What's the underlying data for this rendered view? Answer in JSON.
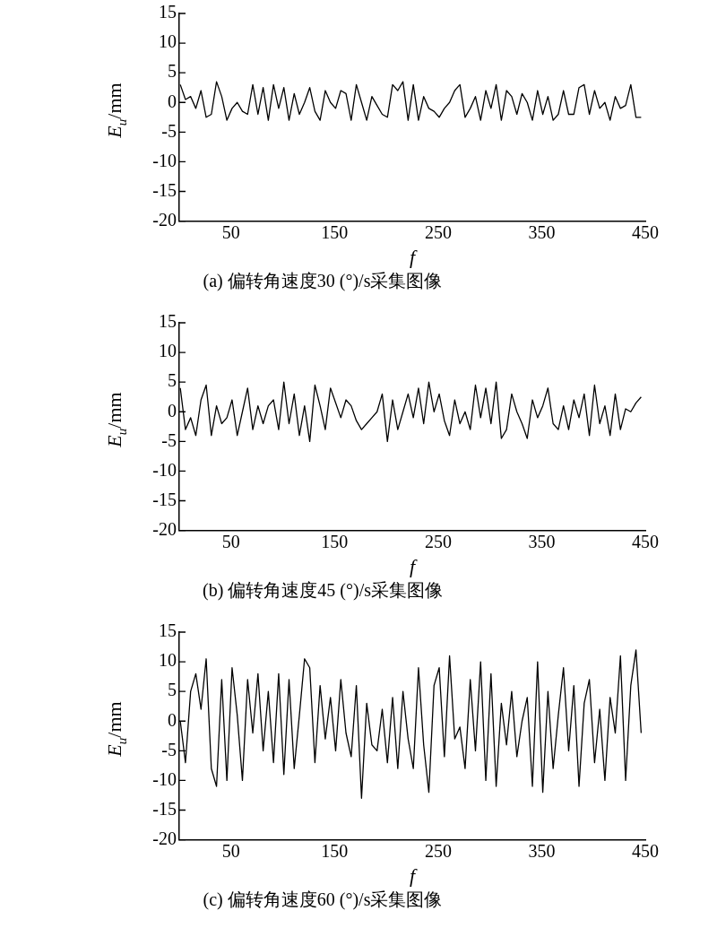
{
  "chart_data": [
    {
      "type": "line",
      "title": "(a) 偏转角速度30 (°)/s采集图像",
      "xlabel": "f",
      "ylabel": "E$_{u}$/mm",
      "color": "#000000",
      "x": [
        1,
        6,
        11,
        16,
        21,
        26,
        31,
        36,
        41,
        46,
        51,
        56,
        61,
        66,
        71,
        76,
        81,
        86,
        91,
        96,
        101,
        106,
        111,
        116,
        121,
        126,
        131,
        136,
        141,
        146,
        151,
        156,
        161,
        166,
        171,
        176,
        181,
        186,
        191,
        196,
        201,
        206,
        211,
        216,
        221,
        226,
        231,
        236,
        241,
        246,
        251,
        256,
        261,
        266,
        271,
        276,
        281,
        286,
        291,
        296,
        301,
        306,
        311,
        316,
        321,
        326,
        331,
        336,
        341,
        346,
        351,
        356,
        361,
        366,
        371,
        376,
        381,
        386,
        391,
        396,
        401,
        406,
        411,
        416,
        421,
        426,
        431,
        436,
        441,
        446
      ],
      "values": [
        3,
        0.5,
        1,
        -1,
        2,
        -2.5,
        -2,
        3.5,
        1,
        -3,
        -1,
        0,
        -1.5,
        -2,
        3,
        -2,
        2.5,
        -3,
        3,
        -1,
        2.5,
        -3,
        1.5,
        -2,
        0,
        2.5,
        -1.5,
        -3,
        2,
        0,
        -1,
        2,
        1.5,
        -3,
        3,
        0,
        -3,
        1,
        -0.5,
        -2,
        -2.5,
        3,
        2,
        3.5,
        -3,
        3,
        -3,
        1,
        -1,
        -1.5,
        -2.5,
        -1,
        0,
        2,
        3,
        -2.5,
        -1,
        1,
        -3,
        2,
        -1,
        3,
        -3,
        2,
        1,
        -2,
        1.5,
        0,
        -3,
        2,
        -2,
        1,
        -3,
        -2,
        2,
        -2,
        -2,
        2.5,
        3,
        -2,
        2,
        -1,
        0,
        -3,
        1,
        -1,
        -0.5,
        3,
        -2.5,
        -2.5
      ],
      "xlim": [
        0,
        450
      ],
      "xticks": [
        50,
        150,
        250,
        350,
        450
      ],
      "ylim": [
        -20,
        15
      ],
      "yticks": [
        -20,
        -15,
        -10,
        -5,
        0,
        5,
        10,
        15
      ]
    },
    {
      "type": "line",
      "title": "(b) 偏转角速度45 (°)/s采集图像",
      "xlabel": "f",
      "ylabel": "E$_{u}$/mm",
      "color": "#000000",
      "x": [
        1,
        6,
        11,
        16,
        21,
        26,
        31,
        36,
        41,
        46,
        51,
        56,
        61,
        66,
        71,
        76,
        81,
        86,
        91,
        96,
        101,
        106,
        111,
        116,
        121,
        126,
        131,
        136,
        141,
        146,
        151,
        156,
        161,
        166,
        171,
        176,
        181,
        186,
        191,
        196,
        201,
        206,
        211,
        216,
        221,
        226,
        231,
        236,
        241,
        246,
        251,
        256,
        261,
        266,
        271,
        276,
        281,
        286,
        291,
        296,
        301,
        306,
        311,
        316,
        321,
        326,
        331,
        336,
        341,
        346,
        351,
        356,
        361,
        366,
        371,
        376,
        381,
        386,
        391,
        396,
        401,
        406,
        411,
        416,
        421,
        426,
        431,
        436,
        441,
        446
      ],
      "values": [
        4,
        -3,
        -1,
        -4,
        2,
        4.5,
        -4,
        1,
        -2,
        -1,
        2,
        -4,
        0,
        4,
        -3,
        1,
        -2,
        1,
        2,
        -3,
        5,
        -2,
        3,
        -4,
        1,
        -5,
        4.5,
        1,
        -3,
        4,
        1.5,
        -1,
        2,
        1,
        -1.5,
        -3,
        -2,
        -1,
        0,
        3,
        -5,
        2,
        -3,
        0,
        3,
        -1,
        4,
        -2,
        5,
        0,
        3,
        -1.5,
        -4,
        2,
        -2,
        0,
        -3,
        4.5,
        -1,
        4,
        -2,
        5,
        -4.5,
        -3,
        3,
        0,
        -2,
        -4.5,
        2,
        -1,
        1,
        4,
        -2,
        -3,
        1,
        -3,
        2,
        -1,
        3,
        -4,
        4.5,
        -2,
        1,
        -4,
        3,
        -3,
        0.5,
        0,
        1.5,
        2.5
      ],
      "xlim": [
        0,
        450
      ],
      "xticks": [
        50,
        150,
        250,
        350,
        450
      ],
      "ylim": [
        -20,
        15
      ],
      "yticks": [
        -20,
        -15,
        -10,
        -5,
        0,
        5,
        10,
        15
      ]
    },
    {
      "type": "line",
      "title": "(c) 偏转角速度60 (°)/s采集图像",
      "xlabel": "f",
      "ylabel": "E$_{u}$/mm",
      "color": "#000000",
      "x": [
        1,
        6,
        11,
        16,
        21,
        26,
        31,
        36,
        41,
        46,
        51,
        56,
        61,
        66,
        71,
        76,
        81,
        86,
        91,
        96,
        101,
        106,
        111,
        116,
        121,
        126,
        131,
        136,
        141,
        146,
        151,
        156,
        161,
        166,
        171,
        176,
        181,
        186,
        191,
        196,
        201,
        206,
        211,
        216,
        221,
        226,
        231,
        236,
        241,
        246,
        251,
        256,
        261,
        266,
        271,
        276,
        281,
        286,
        291,
        296,
        301,
        306,
        311,
        316,
        321,
        326,
        331,
        336,
        341,
        346,
        351,
        356,
        361,
        366,
        371,
        376,
        381,
        386,
        391,
        396,
        401,
        406,
        411,
        416,
        421,
        426,
        431,
        436,
        441,
        446
      ],
      "values": [
        0,
        -7,
        5,
        8,
        2,
        10.5,
        -8,
        -11,
        7,
        -10,
        9,
        1,
        -10,
        7,
        -2,
        8,
        -5,
        5,
        -7,
        8,
        -9,
        7,
        -8,
        1,
        10.5,
        9,
        -7,
        6,
        -3,
        4,
        -5,
        7,
        -2,
        -6,
        6,
        -13,
        3,
        -4,
        -5,
        2,
        -7,
        4,
        -8,
        5,
        -3,
        -8,
        9,
        -4,
        -12,
        6,
        9,
        -6,
        11,
        -3,
        -1,
        -8,
        7,
        -5,
        10,
        -10,
        8,
        -11,
        3,
        -4,
        5,
        -6,
        0,
        4,
        -11,
        10,
        -12,
        5,
        -8,
        1,
        9,
        -5,
        6,
        -11,
        3,
        7,
        -7,
        2,
        -10,
        4,
        -2,
        11,
        -10,
        6,
        12,
        -2
      ],
      "xlim": [
        0,
        450
      ],
      "xticks": [
        50,
        150,
        250,
        350,
        450
      ],
      "ylim": [
        -20,
        15
      ],
      "yticks": [
        -20,
        -15,
        -10,
        -5,
        0,
        5,
        10,
        15
      ]
    }
  ]
}
